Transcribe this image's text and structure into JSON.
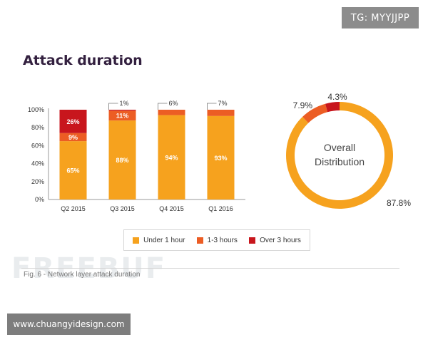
{
  "tags": {
    "telegram": "TG: MYYJJPP",
    "site": "www.chuangyidesign.com",
    "watermark": "FREEBUF"
  },
  "colors": {
    "under_1h": "#f6a21e",
    "between_1_3h": "#ec5d24",
    "over_3h": "#c8161d",
    "axis": "#999999",
    "text": "#333333"
  },
  "legend": [
    {
      "label": "Under 1 hour",
      "color": "#f6a21e"
    },
    {
      "label": "1-3 hours",
      "color": "#ec5d24"
    },
    {
      "label": "Over 3 hours",
      "color": "#c8161d"
    }
  ],
  "caption": "Fig. 6 - Network layer attack duration",
  "chart_data": [
    {
      "type": "bar",
      "stacked": true,
      "title": "Attack duration",
      "categories": [
        "Q2 2015",
        "Q3 2015",
        "Q4 2015",
        "Q1 2016"
      ],
      "y_ticks": [
        "0%",
        "20%",
        "40%",
        "60%",
        "80%",
        "100%"
      ],
      "ylim": [
        0,
        100
      ],
      "series": [
        {
          "name": "Under 1 hour",
          "values": [
            65,
            88,
            94,
            93
          ],
          "labels": [
            "65%",
            "88%",
            "94%",
            "93%"
          ]
        },
        {
          "name": "1-3 hours",
          "values": [
            9,
            11,
            6,
            7
          ],
          "labels": [
            "9%",
            "11%",
            "6%",
            "7%"
          ]
        },
        {
          "name": "Over 3 hours",
          "values": [
            26,
            1,
            0,
            0
          ],
          "labels": [
            "26%",
            "1%",
            "",
            ""
          ]
        }
      ],
      "grid": false,
      "legend": "bottom"
    },
    {
      "type": "pie",
      "donut": true,
      "center_label": [
        "Overall",
        "Distribution"
      ],
      "slices": [
        {
          "name": "Under 1 hour",
          "value": 87.8,
          "label": "87.8%"
        },
        {
          "name": "1-3 hours",
          "value": 7.9,
          "label": "7.9%"
        },
        {
          "name": "Over 3 hours",
          "value": 4.3,
          "label": "4.3%"
        }
      ]
    }
  ]
}
